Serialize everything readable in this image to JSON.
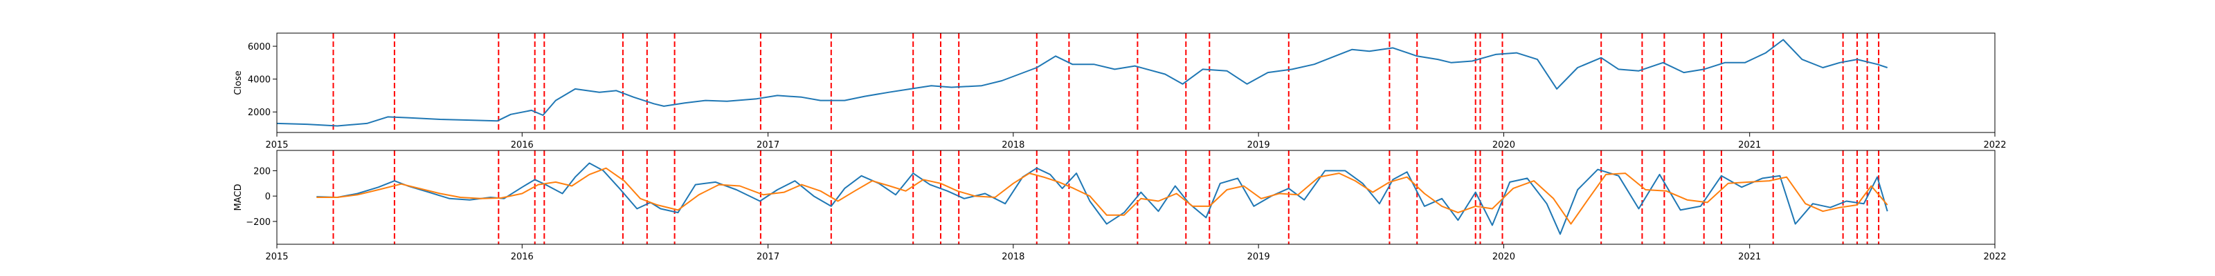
{
  "chart_data": [
    {
      "type": "line",
      "title": "",
      "xlabel": "",
      "ylabel": "Close",
      "xlim": [
        "2015-01-01",
        "2022-01-01"
      ],
      "ylim": [
        750,
        6800
      ],
      "xticks": [
        "2015",
        "2016",
        "2017",
        "2018",
        "2019",
        "2020",
        "2021",
        "2022"
      ],
      "yticks": [
        2000,
        4000,
        6000
      ],
      "grid": false,
      "legend": "none",
      "series": [
        {
          "color": "#1f77b4",
          "x": [
            "2015-01-01",
            "2015-02-15",
            "2015-04-01",
            "2015-05-15",
            "2015-06-15",
            "2015-07-15",
            "2015-09-01",
            "2015-10-15",
            "2015-11-25",
            "2015-12-15",
            "2016-01-15",
            "2016-02-01",
            "2016-02-20",
            "2016-03-20",
            "2016-04-25",
            "2016-05-20",
            "2016-06-15",
            "2016-07-15",
            "2016-07-30",
            "2016-08-30",
            "2016-09-30",
            "2016-11-01",
            "2016-12-15",
            "2017-01-15",
            "2017-02-20",
            "2017-03-20",
            "2017-04-25",
            "2017-05-25",
            "2017-06-30",
            "2017-08-01",
            "2017-09-01",
            "2017-10-01",
            "2017-11-15",
            "2017-12-15",
            "2018-01-10",
            "2018-02-05",
            "2018-03-05",
            "2018-03-30",
            "2018-05-01",
            "2018-06-01",
            "2018-07-01",
            "2018-08-15",
            "2018-09-10",
            "2018-10-10",
            "2018-11-15",
            "2018-12-15",
            "2019-01-15",
            "2019-02-20",
            "2019-03-25",
            "2019-04-25",
            "2019-05-20",
            "2019-06-15",
            "2019-07-20",
            "2019-08-25",
            "2019-09-25",
            "2019-10-15",
            "2019-11-15",
            "2019-12-20",
            "2020-01-20",
            "2020-02-20",
            "2020-03-20",
            "2020-04-20",
            "2020-05-25",
            "2020-06-20",
            "2020-07-20",
            "2020-08-25",
            "2020-09-25",
            "2020-10-25",
            "2020-11-25",
            "2020-12-25",
            "2021-01-25",
            "2021-02-20",
            "2021-03-20",
            "2021-04-20",
            "2021-05-15",
            "2021-06-10",
            "2021-07-10",
            "2021-07-25"
          ],
          "y": [
            1300,
            1250,
            1150,
            1300,
            1700,
            1650,
            1550,
            1500,
            1450,
            1850,
            2100,
            1800,
            2700,
            3400,
            3200,
            3300,
            2900,
            2500,
            2350,
            2550,
            2700,
            2650,
            2800,
            3000,
            2900,
            2700,
            2700,
            2950,
            3200,
            3400,
            3600,
            3500,
            3600,
            3900,
            4300,
            4700,
            5400,
            4900,
            4900,
            4600,
            4800,
            4300,
            3700,
            4600,
            4500,
            3700,
            4400,
            4600,
            4900,
            5400,
            5800,
            5700,
            5900,
            5400,
            5200,
            5000,
            5100,
            5500,
            5600,
            5200,
            3400,
            4700,
            5300,
            4600,
            4500,
            5000,
            4400,
            4600,
            5000,
            5000,
            5600,
            6400,
            5200,
            4700,
            5000,
            5200,
            4900,
            4700
          ]
        }
      ],
      "vlines": {
        "color": "#ff0000",
        "style": "dashed",
        "x": [
          "2015-03-26",
          "2015-06-25",
          "2015-11-27",
          "2016-01-20",
          "2016-02-03",
          "2016-05-30",
          "2016-07-05",
          "2016-08-15",
          "2016-12-21",
          "2017-04-05",
          "2017-08-05",
          "2017-09-15",
          "2017-10-12",
          "2018-02-05",
          "2018-03-25",
          "2018-07-05",
          "2018-09-15",
          "2018-10-20",
          "2019-02-15",
          "2019-07-15",
          "2019-08-25",
          "2019-11-20",
          "2019-11-27",
          "2019-12-30",
          "2020-05-25",
          "2020-07-25",
          "2020-08-27",
          "2020-10-25",
          "2020-11-20",
          "2021-02-05",
          "2021-05-20",
          "2021-06-10",
          "2021-06-25",
          "2021-07-12"
        ]
      }
    },
    {
      "type": "line",
      "title": "",
      "xlabel": "",
      "ylabel": "MACD",
      "xlim": [
        "2015-01-01",
        "2022-01-01"
      ],
      "ylim": [
        -380,
        360
      ],
      "xticks": [
        "2015",
        "2016",
        "2017",
        "2018",
        "2019",
        "2020",
        "2021",
        "2022"
      ],
      "yticks": [
        -200,
        0,
        200
      ],
      "grid": false,
      "legend": "none",
      "series": [
        {
          "color": "#1f77b4",
          "x": [
            "2015-03-01",
            "2015-04-01",
            "2015-05-01",
            "2015-06-01",
            "2015-06-25",
            "2015-07-15",
            "2015-08-15",
            "2015-09-15",
            "2015-10-15",
            "2015-11-15",
            "2015-12-05",
            "2016-01-01",
            "2016-01-20",
            "2016-02-05",
            "2016-03-01",
            "2016-03-20",
            "2016-04-10",
            "2016-05-01",
            "2016-05-25",
            "2016-06-20",
            "2016-07-10",
            "2016-07-25",
            "2016-08-20",
            "2016-09-15",
            "2016-10-15",
            "2016-11-15",
            "2016-12-20",
            "2017-01-15",
            "2017-02-10",
            "2017-03-10",
            "2017-04-05",
            "2017-04-25",
            "2017-05-20",
            "2017-06-15",
            "2017-07-10",
            "2017-08-05",
            "2017-08-30",
            "2017-09-25",
            "2017-10-20",
            "2017-11-20",
            "2017-12-20",
            "2018-01-15",
            "2018-02-05",
            "2018-02-25",
            "2018-03-15",
            "2018-04-05",
            "2018-04-25",
            "2018-05-20",
            "2018-06-15",
            "2018-07-10",
            "2018-08-05",
            "2018-08-30",
            "2018-09-20",
            "2018-10-15",
            "2018-11-05",
            "2018-12-01",
            "2018-12-25",
            "2019-01-20",
            "2019-02-15",
            "2019-03-10",
            "2019-04-10",
            "2019-05-10",
            "2019-06-05",
            "2019-06-30",
            "2019-07-20",
            "2019-08-10",
            "2019-09-05",
            "2019-10-01",
            "2019-10-25",
            "2019-11-20",
            "2019-12-15",
            "2020-01-10",
            "2020-02-05",
            "2020-03-05",
            "2020-03-25",
            "2020-04-20",
            "2020-05-20",
            "2020-06-20",
            "2020-07-20",
            "2020-08-20",
            "2020-09-20",
            "2020-10-20",
            "2020-11-20",
            "2020-12-20",
            "2021-01-20",
            "2021-02-15",
            "2021-03-10",
            "2021-04-05",
            "2021-05-01",
            "2021-05-25",
            "2021-06-20",
            "2021-07-10",
            "2021-07-25"
          ],
          "y": [
            -5,
            -10,
            20,
            70,
            120,
            80,
            30,
            -20,
            -30,
            -10,
            -20,
            70,
            130,
            90,
            20,
            150,
            260,
            200,
            60,
            -100,
            -50,
            -100,
            -130,
            90,
            110,
            50,
            -40,
            50,
            120,
            0,
            -80,
            60,
            160,
            100,
            10,
            180,
            90,
            40,
            -20,
            20,
            -60,
            150,
            220,
            170,
            60,
            180,
            -40,
            -220,
            -130,
            30,
            -120,
            80,
            -60,
            -170,
            100,
            140,
            -80,
            0,
            60,
            -30,
            200,
            200,
            100,
            -60,
            130,
            190,
            -80,
            -20,
            -190,
            30,
            -230,
            110,
            140,
            -60,
            -300,
            50,
            210,
            160,
            -100,
            170,
            -110,
            -80,
            160,
            70,
            140,
            160,
            -220,
            -60,
            -90,
            -40,
            -60,
            150,
            -120
          ]
        },
        {
          "color": "#ff7f0e",
          "x": [
            "2015-03-01",
            "2015-04-01",
            "2015-05-01",
            "2015-06-01",
            "2015-07-05",
            "2015-08-01",
            "2015-09-01",
            "2015-10-01",
            "2015-11-01",
            "2015-12-01",
            "2016-01-01",
            "2016-01-25",
            "2016-02-20",
            "2016-03-15",
            "2016-04-10",
            "2016-05-05",
            "2016-06-01",
            "2016-06-25",
            "2016-07-20",
            "2016-08-20",
            "2016-09-20",
            "2016-10-20",
            "2016-11-20",
            "2016-12-25",
            "2017-01-25",
            "2017-02-20",
            "2017-03-20",
            "2017-04-15",
            "2017-05-10",
            "2017-06-05",
            "2017-07-01",
            "2017-07-25",
            "2017-08-20",
            "2017-09-15",
            "2017-10-10",
            "2017-11-05",
            "2017-12-05",
            "2018-01-01",
            "2018-01-25",
            "2018-02-15",
            "2018-03-10",
            "2018-04-01",
            "2018-04-25",
            "2018-05-20",
            "2018-06-15",
            "2018-07-10",
            "2018-08-05",
            "2018-09-01",
            "2018-09-25",
            "2018-10-20",
            "2018-11-15",
            "2018-12-10",
            "2019-01-05",
            "2019-02-01",
            "2019-03-01",
            "2019-04-01",
            "2019-05-01",
            "2019-05-25",
            "2019-06-20",
            "2019-07-15",
            "2019-08-10",
            "2019-09-05",
            "2019-10-01",
            "2019-10-25",
            "2019-11-20",
            "2019-12-15",
            "2020-01-15",
            "2020-02-15",
            "2020-03-15",
            "2020-04-10",
            "2020-05-05",
            "2020-06-01",
            "2020-06-30",
            "2020-07-30",
            "2020-08-30",
            "2020-09-30",
            "2020-10-30",
            "2020-11-30",
            "2020-12-30",
            "2021-01-30",
            "2021-02-25",
            "2021-03-25",
            "2021-04-20",
            "2021-05-15",
            "2021-06-10",
            "2021-07-01",
            "2021-07-25"
          ],
          "y": [
            -10,
            -10,
            10,
            50,
            95,
            60,
            20,
            -10,
            -20,
            -15,
            20,
            90,
            110,
            80,
            170,
            220,
            120,
            -20,
            -70,
            -110,
            10,
            90,
            80,
            10,
            30,
            90,
            40,
            -40,
            40,
            120,
            80,
            40,
            130,
            100,
            40,
            0,
            -10,
            100,
            180,
            150,
            110,
            60,
            0,
            -150,
            -150,
            -20,
            -40,
            20,
            -80,
            -80,
            50,
            80,
            -20,
            20,
            10,
            150,
            180,
            120,
            30,
            110,
            150,
            20,
            -80,
            -130,
            -80,
            -100,
            60,
            120,
            -20,
            -220,
            -30,
            170,
            180,
            50,
            40,
            -30,
            -50,
            100,
            110,
            120,
            150,
            -60,
            -120,
            -90,
            -70,
            80,
            -70
          ]
        }
      ],
      "vlines": {
        "color": "#ff0000",
        "style": "dashed",
        "x": [
          "2015-03-26",
          "2015-06-25",
          "2015-11-27",
          "2016-01-20",
          "2016-02-03",
          "2016-05-30",
          "2016-07-05",
          "2016-08-15",
          "2016-12-21",
          "2017-04-05",
          "2017-08-05",
          "2017-09-15",
          "2017-10-12",
          "2018-02-05",
          "2018-03-25",
          "2018-07-05",
          "2018-09-15",
          "2018-10-20",
          "2019-02-15",
          "2019-07-15",
          "2019-08-25",
          "2019-11-20",
          "2019-11-27",
          "2019-12-30",
          "2020-05-25",
          "2020-07-25",
          "2020-08-27",
          "2020-10-25",
          "2020-11-20",
          "2021-02-05",
          "2021-05-20",
          "2021-06-10",
          "2021-06-25",
          "2021-07-12"
        ]
      }
    }
  ]
}
